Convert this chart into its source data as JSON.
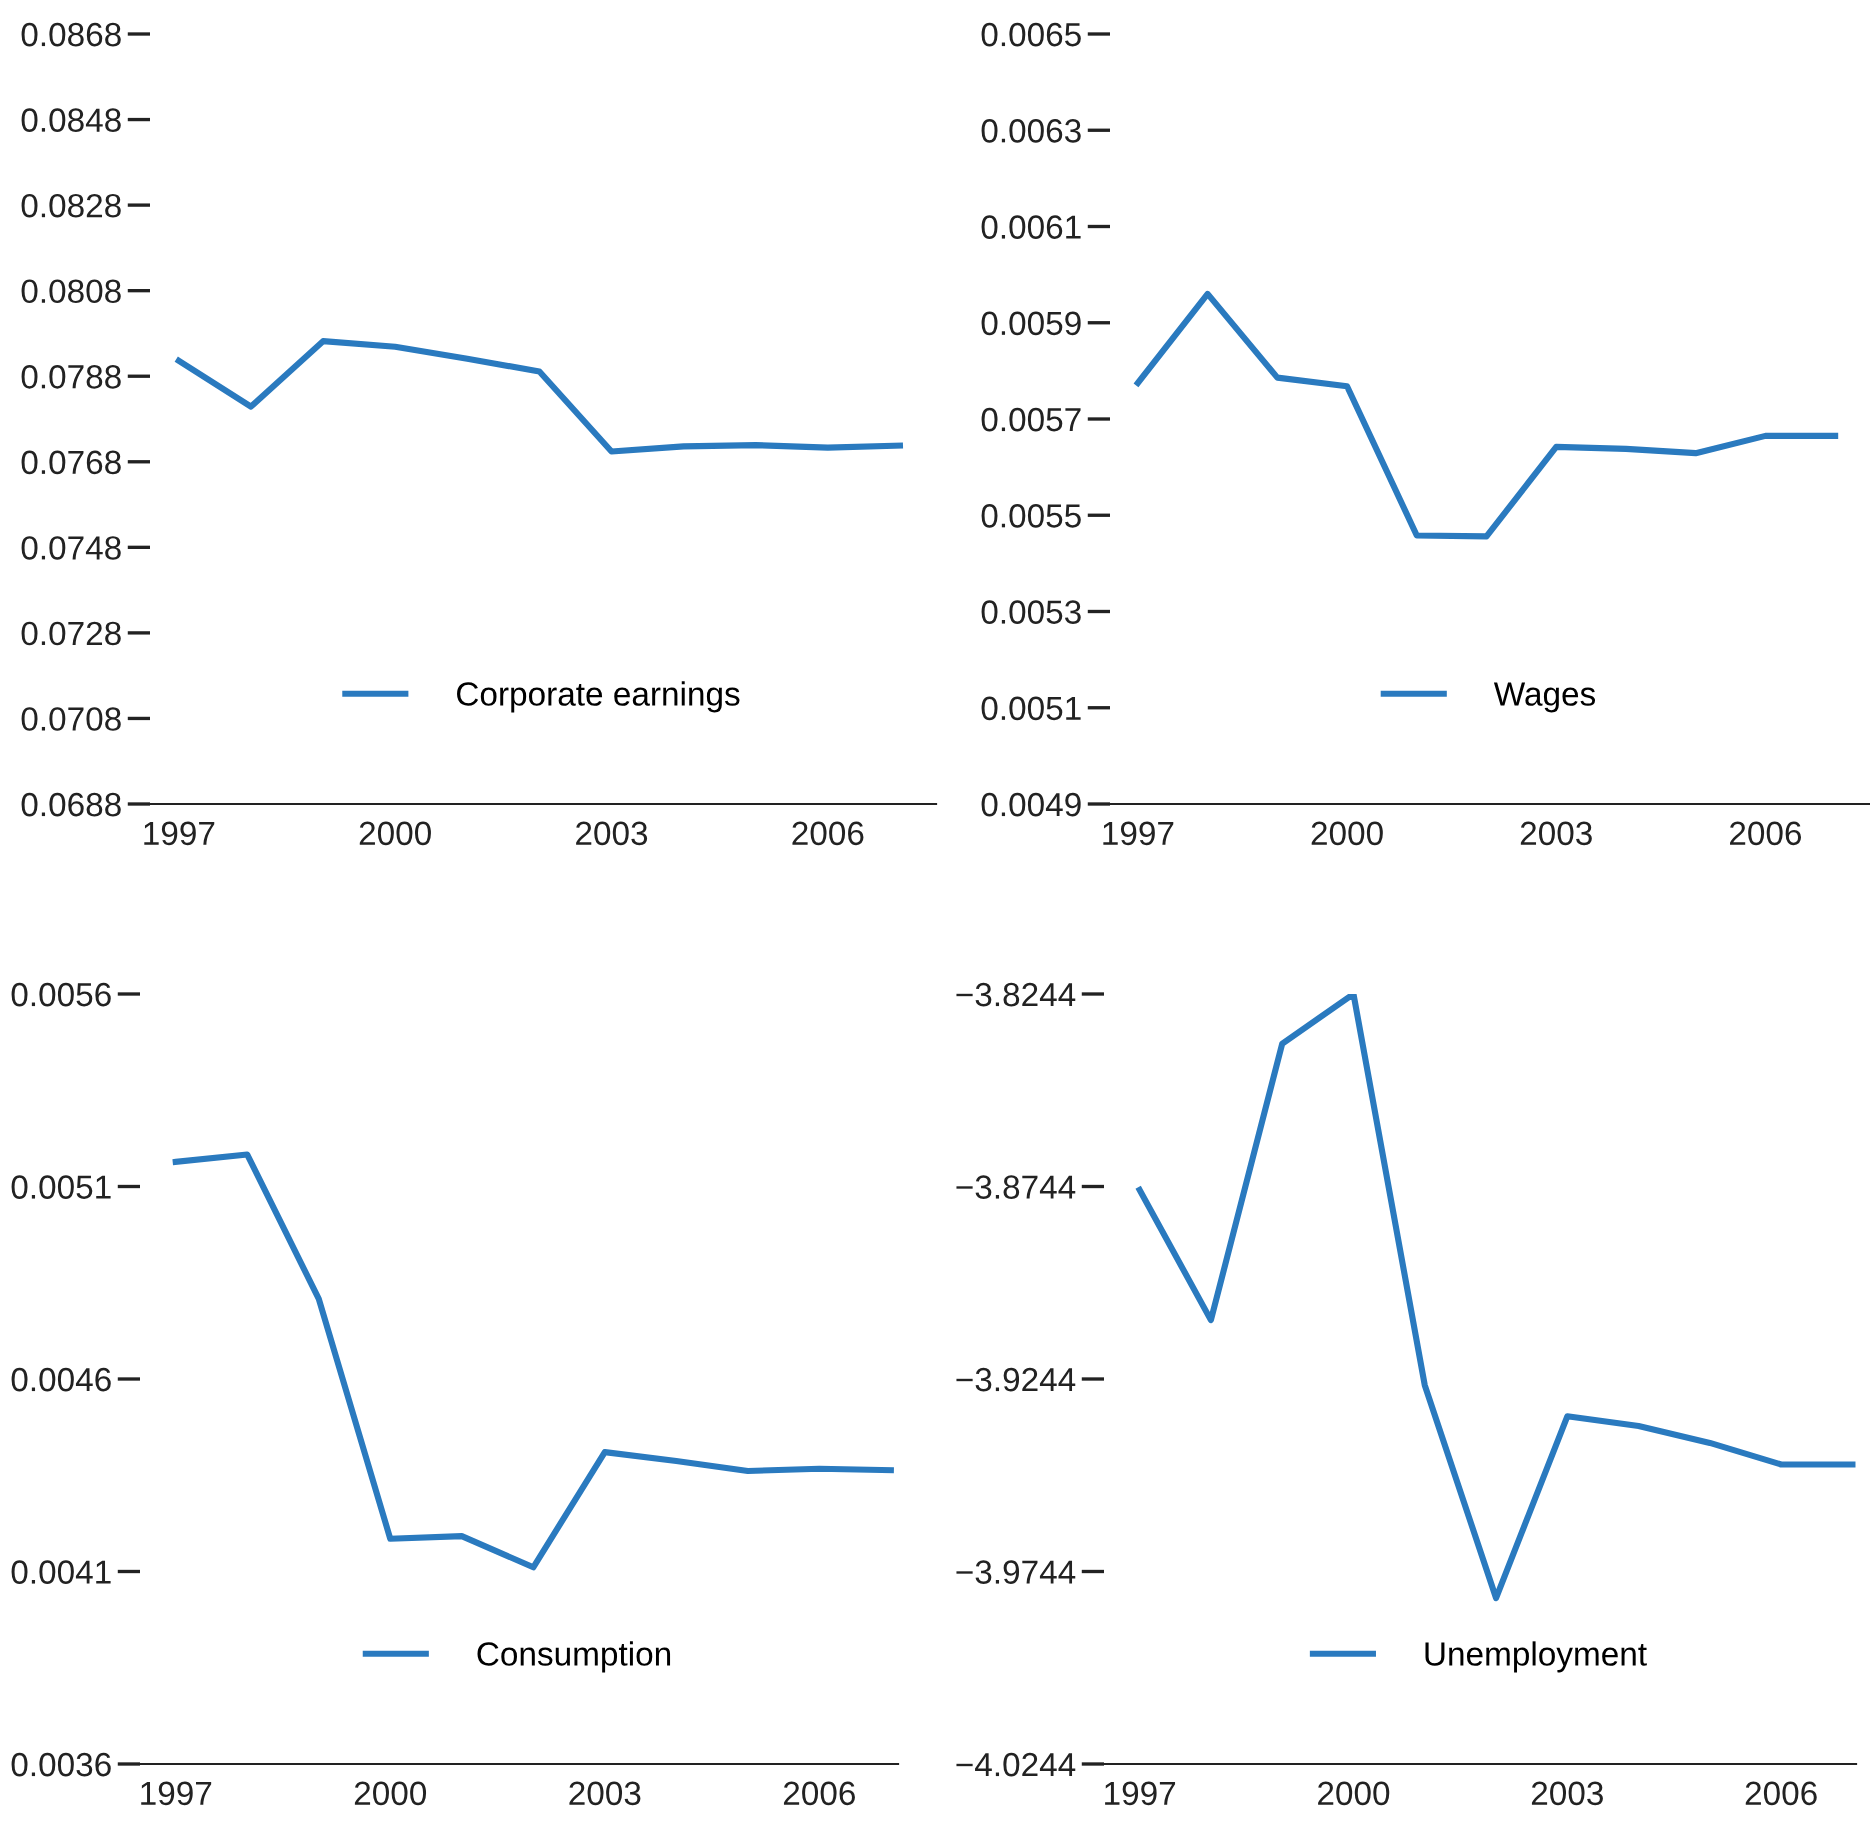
{
  "chart_data": [
    {
      "type": "line",
      "x": [
        1997,
        1998,
        1999,
        2000,
        2001,
        2002,
        2003,
        2004,
        2005,
        2006,
        2007
      ],
      "series": [
        {
          "name": "Corporate earnings",
          "color": "#2a7abf",
          "values": [
            0.07916,
            0.07809,
            0.07962,
            0.07949,
            0.07921,
            0.07891,
            0.07704,
            0.07716,
            0.07719,
            0.07713,
            0.07718
          ]
        }
      ],
      "xlim": [
        1996.6,
        2007.5
      ],
      "xticks": [
        1997,
        2000,
        2003,
        2006
      ],
      "ylim": [
        0.0688,
        0.0868
      ],
      "yticks": [
        0.0688,
        0.0708,
        0.0728,
        0.0748,
        0.0768,
        0.0788,
        0.0808,
        0.0828,
        0.0848,
        0.0868
      ],
      "legend": "bottom",
      "grid": false,
      "line_style": "solid"
    },
    {
      "type": "line",
      "x": [
        1997,
        1998,
        1999,
        2000,
        2001,
        2002,
        2003,
        2004,
        2005,
        2006,
        2007
      ],
      "series": [
        {
          "name": "Wages",
          "color": "#2a7abf",
          "values": [
            0.005775,
            0.00596,
            0.005786,
            0.005768,
            0.005458,
            0.005456,
            0.005642,
            0.005638,
            0.005629,
            0.005665,
            0.005665
          ]
        }
      ],
      "xlim": [
        1996.6,
        2007.5
      ],
      "xticks": [
        1997,
        2000,
        2003,
        2006
      ],
      "ylim": [
        0.0049,
        0.0065
      ],
      "yticks": [
        0.0049,
        0.0051,
        0.0053,
        0.0055,
        0.0057,
        0.0059,
        0.0061,
        0.0063,
        0.0065
      ],
      "legend": "bottom",
      "grid": false,
      "line_style": "solid"
    },
    {
      "type": "line",
      "x": [
        1997,
        1998,
        1999,
        2000,
        2001,
        2002,
        2003,
        2004,
        2005,
        2006,
        2007
      ],
      "series": [
        {
          "name": "Consumption",
          "color": "#2a7abf",
          "values": [
            0.005164,
            0.005183,
            0.004808,
            0.004185,
            0.004192,
            0.004111,
            0.00441,
            0.004387,
            0.004361,
            0.004367,
            0.004363
          ]
        }
      ],
      "xlim": [
        1996.5,
        2007.1
      ],
      "xticks": [
        1997,
        2000,
        2003,
        2006
      ],
      "ylim": [
        0.0036,
        0.0056
      ],
      "yticks": [
        0.0036,
        0.0041,
        0.0046,
        0.0051,
        0.0056
      ],
      "legend": "bottom",
      "grid": false,
      "line_style": "solid"
    },
    {
      "type": "line",
      "x": [
        1997,
        1998,
        1999,
        2000,
        2001,
        2002,
        2003,
        2004,
        2005,
        2006,
        2007
      ],
      "series": [
        {
          "name": "Unemployment",
          "color": "#2a7abf",
          "values": [
            -3.8753,
            -3.9091,
            -3.8373,
            -3.8244,
            -3.926,
            -3.9813,
            -3.9341,
            -3.9366,
            -3.941,
            -3.9466,
            -3.9466
          ]
        }
      ],
      "xlim": [
        1996.5,
        2007.05
      ],
      "xticks": [
        1997,
        2000,
        2003,
        2006
      ],
      "ylim": [
        -4.0244,
        -3.8244
      ],
      "yticks": [
        {
          "value": -4.0244,
          "label": "−4.0244"
        },
        {
          "value": -3.9744,
          "label": "−3.9744"
        },
        {
          "value": -3.9244,
          "label": "−3.9244"
        },
        {
          "value": -3.8744,
          "label": "−3.8744"
        },
        {
          "value": -3.8244,
          "label": "−3.8244"
        }
      ],
      "legend": "bottom",
      "grid": false,
      "line_style": "solid"
    }
  ]
}
